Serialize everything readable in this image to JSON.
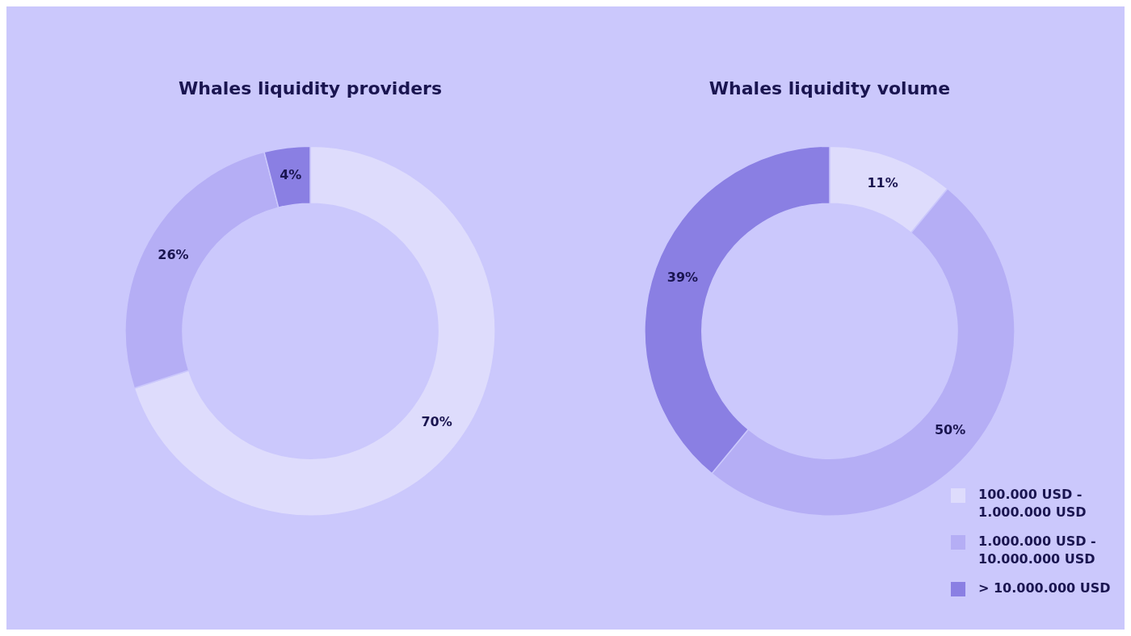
{
  "chart_data": [
    {
      "type": "donut",
      "title": "Whales liquidity providers",
      "categories": [
        null,
        null,
        null
      ],
      "values": [
        70,
        26,
        4
      ],
      "value_labels": [
        "70%",
        "26%",
        "4%"
      ],
      "colors": [
        "#dedcfc",
        "#b5aef5",
        "#8a7fe3"
      ],
      "legend": false
    },
    {
      "type": "donut",
      "title": "Whales liquidity volume",
      "categories": [
        "100.000 USD - 1.000.000 USD",
        "1.000.000 USD - 10.000.000 USD",
        "> 10.000.000 USD"
      ],
      "values": [
        11,
        50,
        39
      ],
      "value_labels": [
        "11%",
        "50%",
        "39%"
      ],
      "colors": [
        "#dedcfc",
        "#b5aef5",
        "#8a7fe3"
      ],
      "legend": "bottom right"
    }
  ]
}
